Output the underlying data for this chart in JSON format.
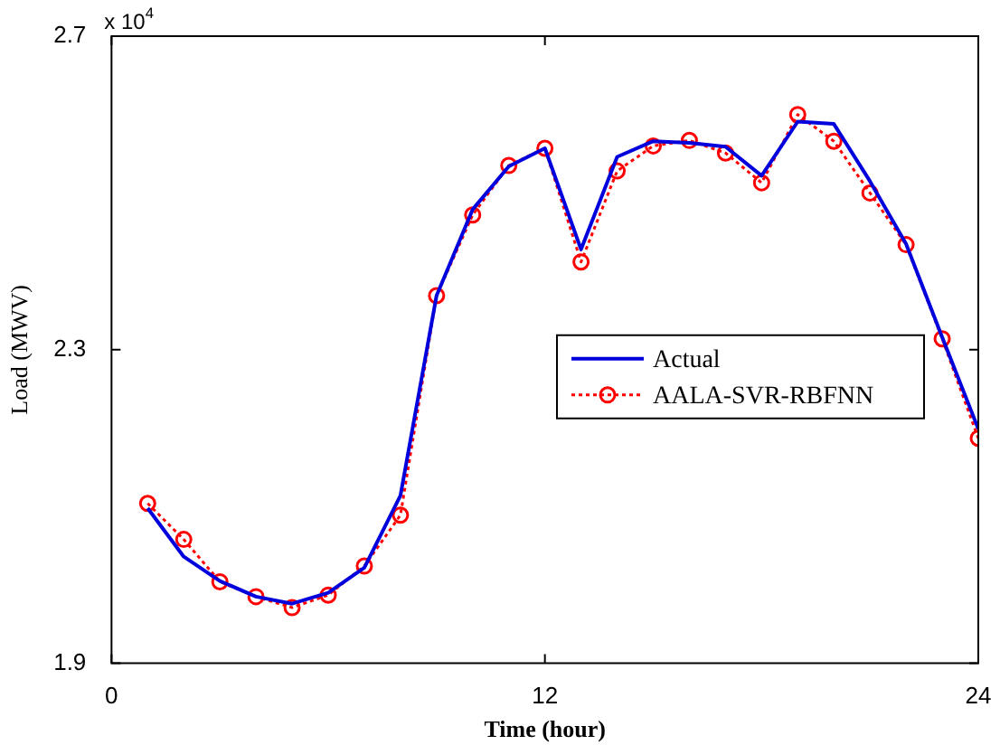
{
  "chart_data": {
    "type": "line",
    "xlabel": "Time (hour)",
    "ylabel": "Load (MWV)",
    "x": [
      1,
      2,
      3,
      4,
      5,
      6,
      7,
      8,
      9,
      10,
      11,
      12,
      13,
      14,
      15,
      16,
      17,
      18,
      19,
      20,
      21,
      22,
      23,
      24
    ],
    "series": [
      {
        "name": "Actual",
        "color": "#0000dd",
        "marker": "none",
        "line_style": "solid",
        "values": [
          2.098,
          2.036,
          2.005,
          1.985,
          1.976,
          1.99,
          2.022,
          2.114,
          2.369,
          2.479,
          2.534,
          2.557,
          2.428,
          2.546,
          2.566,
          2.564,
          2.559,
          2.522,
          2.591,
          2.588,
          2.515,
          2.435,
          2.316,
          2.199
        ]
      },
      {
        "name": "AALA-SVR-RBFNN",
        "color": "#ff0000",
        "marker": "circle",
        "line_style": "dotted",
        "values": [
          2.104,
          2.058,
          2.004,
          1.985,
          1.971,
          1.987,
          2.024,
          2.089,
          2.369,
          2.472,
          2.535,
          2.557,
          2.412,
          2.528,
          2.56,
          2.567,
          2.551,
          2.513,
          2.6,
          2.566,
          2.5,
          2.434,
          2.314,
          2.187
        ]
      }
    ],
    "xlim": [
      0,
      24
    ],
    "xticks": [
      0,
      12,
      24
    ],
    "ylim": [
      1.9,
      2.7
    ],
    "yticks": [
      1.9,
      2.3,
      2.7
    ],
    "annotations": [
      "x 10$^{4}$"
    ],
    "grid": false,
    "legend": "right"
  }
}
